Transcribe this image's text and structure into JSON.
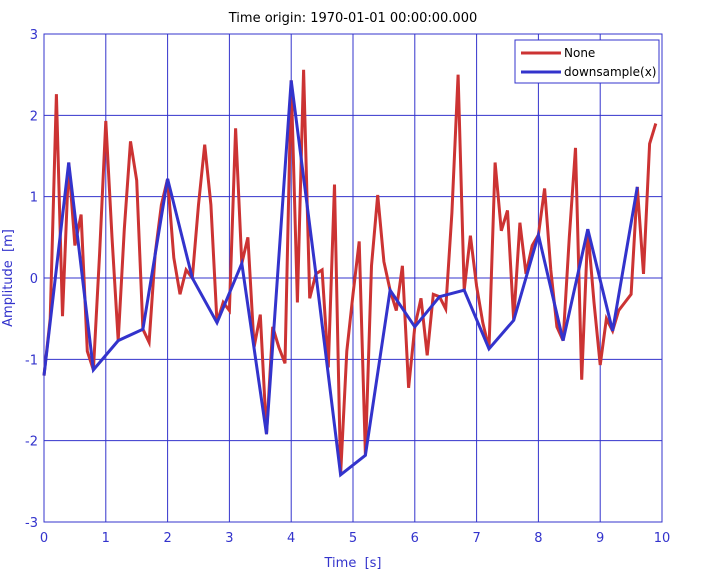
{
  "chart_data": {
    "type": "line",
    "title": "Time origin: 1970-01-01 00:00:00.000",
    "xlabel": "Time  [s]",
    "ylabel": "Amplitude  [m]",
    "xlim": [
      0,
      10
    ],
    "ylim": [
      -3,
      3
    ],
    "xticks": [
      0,
      1,
      2,
      3,
      4,
      5,
      6,
      7,
      8,
      9,
      10
    ],
    "yticks": [
      -3,
      -2,
      -1,
      0,
      1,
      2,
      3
    ],
    "grid": true,
    "legend_position": "top-right",
    "colors": {
      "axis": "#3333cc",
      "grid": "#3333cc",
      "text": "#3333cc",
      "title": "#000000"
    },
    "series": [
      {
        "name": "None",
        "color": "#cc3333",
        "x_start": 0,
        "x_step": 0.1,
        "values": [
          -1.2,
          -0.5,
          2.26,
          -0.47,
          1.42,
          0.4,
          0.78,
          -0.9,
          -1.13,
          0.3,
          1.93,
          0.5,
          -0.77,
          0.6,
          1.68,
          1.2,
          -0.63,
          -0.79,
          0.3,
          0.9,
          1.22,
          0.25,
          -0.2,
          0.1,
          0.0,
          0.9,
          1.64,
          0.9,
          -0.55,
          -0.3,
          -0.4,
          1.84,
          0.18,
          0.5,
          -0.85,
          -0.45,
          -1.92,
          -0.6,
          -0.85,
          -1.05,
          2.43,
          -0.3,
          2.56,
          -0.25,
          0.05,
          0.1,
          -1.1,
          1.15,
          -2.42,
          -0.9,
          -0.2,
          0.45,
          -2.18,
          0.15,
          1.02,
          0.2,
          -0.15,
          -0.4,
          0.15,
          -1.35,
          -0.6,
          -0.25,
          -0.95,
          -0.2,
          -0.23,
          -0.38,
          0.8,
          2.5,
          -0.15,
          0.52,
          -0.1,
          -0.55,
          -0.87,
          1.42,
          0.58,
          0.83,
          -0.52,
          0.68,
          0.05,
          0.4,
          0.53,
          1.1,
          0.1,
          -0.6,
          -0.77,
          0.5,
          1.6,
          -1.25,
          0.6,
          -0.3,
          -1.07,
          -0.5,
          -0.65,
          -0.4,
          -0.3,
          -0.2,
          1.12,
          0.05,
          1.65,
          1.9
        ]
      },
      {
        "name": "downsample(x)",
        "color": "#3333cc",
        "x_start": 0,
        "x_step": 0.4,
        "values": [
          -1.2,
          1.42,
          -1.13,
          -0.77,
          -0.63,
          1.22,
          0.0,
          -0.55,
          0.18,
          -1.92,
          2.43,
          0.05,
          -2.42,
          -2.18,
          -0.15,
          -0.6,
          -0.23,
          -0.15,
          -0.87,
          -0.52,
          0.53,
          -0.77,
          0.6,
          -0.65,
          1.12
        ]
      }
    ]
  }
}
